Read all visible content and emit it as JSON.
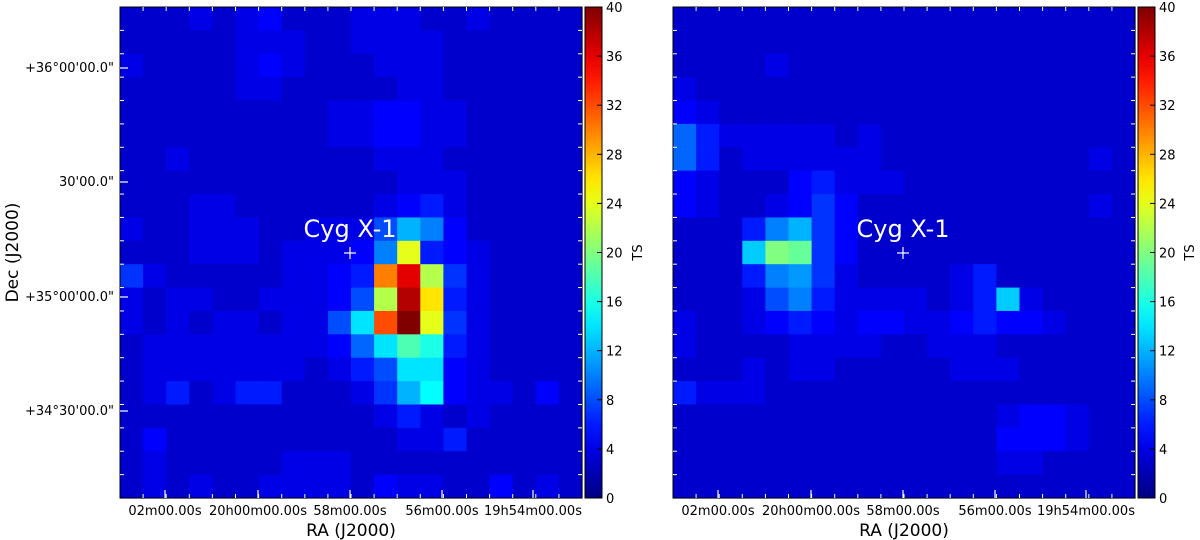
{
  "chart_data": [
    {
      "type": "heatmap",
      "xlabel": "RA (J2000)",
      "ylabel": "Dec (J2000)",
      "x_ticklabels": [
        "02m00.00s",
        "20h00m00.00s",
        "58m00.00s",
        "56m00.00s",
        "19h54m00.00s"
      ],
      "y_ticklabels": [
        "+36°00'00.0\"",
        "30'00.0\"",
        "+35°00'00.0\"",
        "+34°30'00.0\""
      ],
      "colorbar": {
        "label": "TS",
        "min": 0,
        "max": 40,
        "ticks": [
          0,
          4,
          8,
          12,
          16,
          20,
          24,
          28,
          32,
          36,
          40
        ]
      },
      "source": {
        "label": "Cyg X-1"
      },
      "grid_size": [
        20,
        21
      ],
      "cells": [
        [
          3,
          3,
          3,
          4,
          3,
          4,
          5,
          3,
          3,
          3,
          4,
          4,
          4,
          3,
          3,
          4,
          3,
          3,
          3,
          3
        ],
        [
          3,
          3,
          3,
          3,
          3,
          4,
          4,
          4,
          3,
          3,
          4,
          4,
          4,
          4,
          3,
          3,
          3,
          3,
          3,
          3
        ],
        [
          4,
          3,
          3,
          3,
          3,
          4,
          5,
          4,
          3,
          3,
          3,
          4,
          4,
          4,
          3,
          3,
          3,
          3,
          3,
          3
        ],
        [
          3,
          3,
          3,
          3,
          3,
          4,
          4,
          3,
          3,
          3,
          3,
          3,
          4,
          4,
          3,
          3,
          3,
          3,
          3,
          3
        ],
        [
          3,
          3,
          3,
          3,
          3,
          3,
          3,
          3,
          3,
          4,
          4,
          5,
          5,
          4,
          4,
          3,
          3,
          3,
          3,
          3
        ],
        [
          3,
          3,
          3,
          3,
          3,
          3,
          3,
          3,
          3,
          4,
          4,
          5,
          5,
          4,
          4,
          3,
          3,
          3,
          3,
          3
        ],
        [
          3,
          3,
          4,
          3,
          3,
          3,
          3,
          3,
          3,
          3,
          3,
          4,
          4,
          4,
          3,
          3,
          3,
          3,
          3,
          3
        ],
        [
          3,
          3,
          3,
          3,
          3,
          3,
          3,
          3,
          3,
          3,
          3,
          3,
          4,
          4,
          4,
          3,
          3,
          3,
          3,
          3
        ],
        [
          3,
          3,
          3,
          4,
          4,
          3,
          3,
          3,
          3,
          3,
          3,
          4,
          5,
          6,
          4,
          3,
          3,
          3,
          3,
          3
        ],
        [
          4,
          3,
          3,
          4,
          4,
          4,
          3,
          3,
          4,
          4,
          4,
          8,
          12,
          10,
          5,
          3,
          3,
          3,
          3,
          3
        ],
        [
          3,
          3,
          3,
          4,
          4,
          4,
          3,
          4,
          4,
          4,
          5,
          10,
          24,
          6,
          5,
          4,
          3,
          3,
          3,
          3
        ],
        [
          7,
          4,
          3,
          3,
          3,
          3,
          3,
          4,
          4,
          5,
          6,
          30,
          36,
          22,
          7,
          4,
          3,
          3,
          3,
          3
        ],
        [
          4,
          3,
          4,
          4,
          3,
          3,
          4,
          4,
          4,
          5,
          8,
          22,
          38,
          26,
          6,
          4,
          3,
          3,
          3,
          3
        ],
        [
          4,
          3,
          4,
          3,
          4,
          4,
          3,
          4,
          4,
          8,
          14,
          32,
          40,
          24,
          7,
          4,
          3,
          3,
          3,
          3
        ],
        [
          3,
          4,
          4,
          4,
          4,
          4,
          4,
          4,
          4,
          5,
          9,
          14,
          18,
          16,
          6,
          4,
          3,
          3,
          3,
          3
        ],
        [
          3,
          4,
          4,
          4,
          4,
          4,
          4,
          4,
          3,
          4,
          6,
          8,
          14,
          14,
          5,
          4,
          3,
          3,
          3,
          3
        ],
        [
          3,
          4,
          6,
          3,
          4,
          6,
          6,
          3,
          3,
          3,
          4,
          7,
          12,
          15,
          5,
          4,
          4,
          3,
          5,
          3
        ],
        [
          3,
          3,
          3,
          3,
          3,
          3,
          3,
          3,
          3,
          3,
          3,
          4,
          6,
          4,
          3,
          4,
          3,
          3,
          3,
          3
        ],
        [
          3,
          5,
          3,
          3,
          3,
          3,
          3,
          3,
          3,
          3,
          3,
          3,
          4,
          4,
          6,
          3,
          3,
          3,
          3,
          3
        ],
        [
          3,
          4,
          3,
          3,
          3,
          3,
          3,
          4,
          4,
          4,
          3,
          3,
          3,
          3,
          3,
          3,
          3,
          3,
          3,
          3
        ],
        [
          3,
          4,
          3,
          4,
          3,
          3,
          4,
          4,
          4,
          4,
          3,
          5,
          4,
          4,
          3,
          3,
          5,
          3,
          4,
          3
        ]
      ]
    },
    {
      "type": "heatmap",
      "xlabel": "RA (J2000)",
      "ylabel": "",
      "x_ticklabels": [
        "02m00.00s",
        "20h00m00.00s",
        "58m00.00s",
        "56m00.00s",
        "19h54m00.00s"
      ],
      "y_ticklabels": [],
      "colorbar": {
        "label": "TS",
        "min": 0,
        "max": 40,
        "ticks": [
          0,
          4,
          8,
          12,
          16,
          20,
          24,
          28,
          32,
          36,
          40
        ]
      },
      "source": {
        "label": "Cyg X-1"
      },
      "grid_size": [
        20,
        21
      ],
      "cells": [
        [
          3,
          3,
          3,
          3,
          3,
          3,
          3,
          3,
          3,
          3,
          3,
          3,
          3,
          3,
          3,
          3,
          3,
          3,
          3,
          3
        ],
        [
          3,
          3,
          3,
          3,
          3,
          3,
          3,
          3,
          3,
          3,
          3,
          3,
          3,
          3,
          3,
          3,
          3,
          3,
          3,
          3
        ],
        [
          3,
          3,
          3,
          3,
          4,
          3,
          3,
          3,
          3,
          3,
          3,
          3,
          3,
          3,
          3,
          3,
          3,
          3,
          3,
          3
        ],
        [
          4,
          3,
          3,
          3,
          3,
          3,
          3,
          3,
          3,
          3,
          3,
          3,
          3,
          3,
          3,
          3,
          3,
          3,
          3,
          3
        ],
        [
          5,
          4,
          3,
          3,
          3,
          3,
          3,
          3,
          3,
          3,
          3,
          3,
          3,
          3,
          3,
          3,
          3,
          3,
          3,
          3
        ],
        [
          9,
          6,
          4,
          4,
          4,
          4,
          4,
          3,
          4,
          3,
          3,
          3,
          3,
          3,
          3,
          3,
          3,
          3,
          3,
          3
        ],
        [
          9,
          6,
          3,
          4,
          4,
          4,
          4,
          4,
          4,
          3,
          3,
          3,
          3,
          3,
          3,
          3,
          3,
          3,
          4,
          3
        ],
        [
          5,
          4,
          3,
          3,
          3,
          5,
          6,
          4,
          4,
          4,
          3,
          3,
          3,
          3,
          3,
          3,
          3,
          3,
          3,
          3
        ],
        [
          5,
          4,
          3,
          3,
          4,
          5,
          7,
          5,
          3,
          3,
          3,
          3,
          3,
          3,
          3,
          3,
          3,
          3,
          4,
          3
        ],
        [
          3,
          3,
          3,
          6,
          10,
          12,
          7,
          5,
          3,
          3,
          3,
          3,
          3,
          3,
          3,
          3,
          3,
          3,
          3,
          3
        ],
        [
          3,
          3,
          3,
          13,
          20,
          19,
          7,
          5,
          3,
          3,
          3,
          3,
          3,
          3,
          3,
          3,
          3,
          3,
          3,
          3
        ],
        [
          3,
          3,
          3,
          6,
          10,
          11,
          7,
          4,
          3,
          3,
          3,
          3,
          4,
          6,
          3,
          3,
          3,
          3,
          3,
          3
        ],
        [
          3,
          3,
          3,
          4,
          8,
          10,
          6,
          4,
          4,
          4,
          4,
          3,
          4,
          6,
          13,
          4,
          3,
          3,
          3,
          3
        ],
        [
          4,
          3,
          3,
          4,
          5,
          6,
          5,
          4,
          5,
          5,
          4,
          4,
          5,
          6,
          5,
          5,
          4,
          3,
          3,
          3
        ],
        [
          4,
          3,
          3,
          3,
          3,
          4,
          4,
          4,
          4,
          3,
          3,
          4,
          4,
          4,
          3,
          3,
          3,
          3,
          3,
          3
        ],
        [
          3,
          3,
          3,
          4,
          3,
          4,
          4,
          3,
          3,
          3,
          3,
          3,
          4,
          4,
          4,
          3,
          3,
          3,
          3,
          3
        ],
        [
          6,
          4,
          4,
          4,
          3,
          3,
          3,
          3,
          3,
          3,
          3,
          3,
          3,
          3,
          3,
          3,
          3,
          3,
          3,
          3
        ],
        [
          3,
          3,
          3,
          3,
          3,
          3,
          3,
          3,
          3,
          3,
          3,
          3,
          3,
          3,
          4,
          5,
          5,
          4,
          3,
          3
        ],
        [
          3,
          3,
          3,
          3,
          3,
          3,
          3,
          3,
          3,
          3,
          3,
          3,
          3,
          3,
          5,
          5,
          5,
          4,
          3,
          3
        ],
        [
          3,
          3,
          3,
          3,
          3,
          3,
          3,
          3,
          3,
          3,
          3,
          3,
          3,
          3,
          4,
          4,
          3,
          3,
          3,
          3
        ],
        [
          3,
          3,
          3,
          3,
          3,
          3,
          3,
          3,
          3,
          3,
          3,
          3,
          3,
          3,
          3,
          3,
          3,
          3,
          3,
          3
        ]
      ]
    }
  ]
}
